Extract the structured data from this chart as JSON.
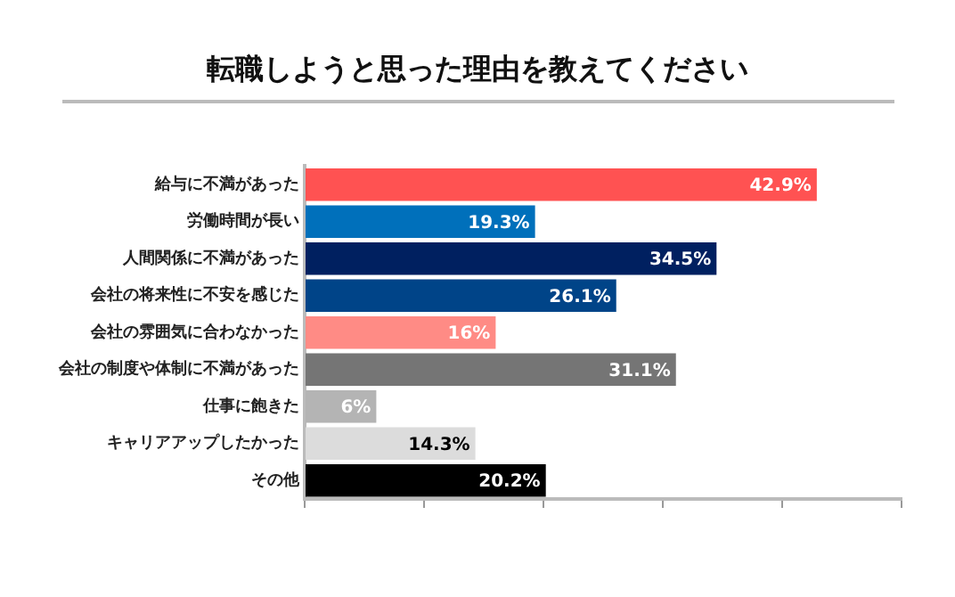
{
  "chart_data": {
    "type": "bar",
    "orientation": "horizontal",
    "title": "転職しようと思った理由を教えてください",
    "categories": [
      "給与に不満があった",
      "労働時間が長い",
      "人間関係に不満があった",
      "会社の将来性に不安を感じた",
      "会社の雰囲気に合わなかった",
      "会社の制度や体制に不満があった",
      "仕事に飽きた",
      "キャリアアップしたかった",
      "その他"
    ],
    "values": [
      42.9,
      19.3,
      34.5,
      26.1,
      16,
      31.1,
      6,
      14.3,
      20.2
    ],
    "value_labels": [
      "42.9%",
      "19.3%",
      "34.5%",
      "26.1%",
      "16%",
      "31.1%",
      "6%",
      "14.3%",
      "20.2%"
    ],
    "colors": [
      "#ff5252",
      "#0070bb",
      "#002060",
      "#004488",
      "#ff8b85",
      "#757575",
      "#b4b4b4",
      "#dcdcdc",
      "#000000"
    ],
    "xlim": [
      0,
      50
    ],
    "xticks": [
      {
        "value": 0,
        "label": null
      },
      {
        "value": 10,
        "label": null
      },
      {
        "value": 20,
        "label": null
      },
      {
        "value": 30,
        "label": null
      },
      {
        "value": 40,
        "label": null
      },
      {
        "value": 50,
        "label": null
      }
    ],
    "tick_labels": "y",
    "grid": false,
    "legend": false
  }
}
